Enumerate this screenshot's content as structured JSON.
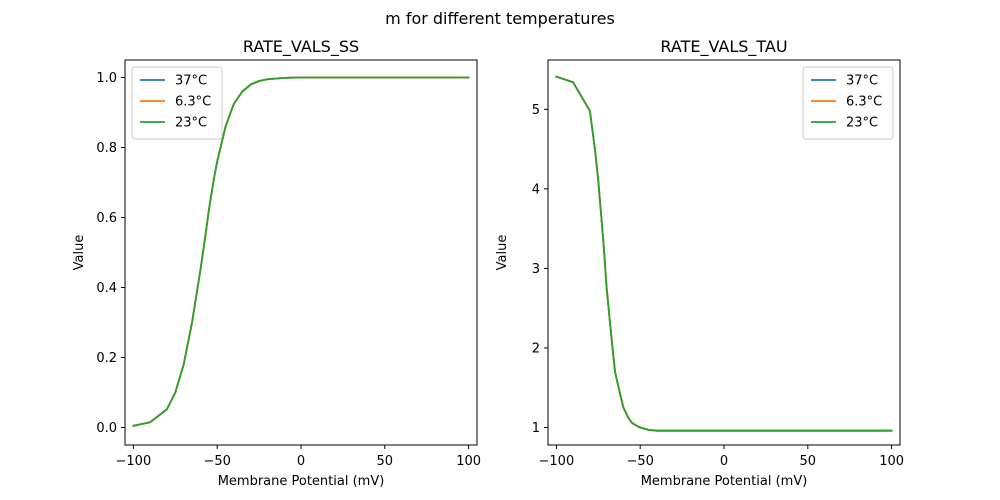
{
  "figure_title": "m for different temperatures",
  "chart_data": [
    {
      "type": "line",
      "title": "RATE_VALS_SS",
      "xlabel": "Membrane Potential (mV)",
      "ylabel": "Value",
      "xlim": [
        -105,
        105
      ],
      "ylim": [
        -0.05,
        1.05
      ],
      "xticks": [
        -100,
        -50,
        0,
        50,
        100
      ],
      "xtick_labels": [
        "−100",
        "−50",
        "0",
        "50",
        "100"
      ],
      "yticks": [
        0.0,
        0.2,
        0.4,
        0.6,
        0.8,
        1.0
      ],
      "ytick_labels": [
        "0.0",
        "0.2",
        "0.4",
        "0.6",
        "0.8",
        "1.0"
      ],
      "grid": false,
      "legend_position": "top-left",
      "x": [
        -100,
        -90,
        -80,
        -75,
        -70,
        -65,
        -60,
        -57,
        -55,
        -52,
        -50,
        -47,
        -45,
        -42,
        -40,
        -35,
        -30,
        -25,
        -20,
        -10,
        0,
        20,
        50,
        100
      ],
      "series": [
        {
          "name": "37°C",
          "color": "#1f77b4",
          "values": [
            0.005,
            0.015,
            0.052,
            0.1,
            0.18,
            0.3,
            0.45,
            0.55,
            0.62,
            0.71,
            0.76,
            0.82,
            0.86,
            0.9,
            0.925,
            0.96,
            0.98,
            0.99,
            0.995,
            0.999,
            1.0,
            1.0,
            1.0,
            1.0
          ]
        },
        {
          "name": "6.3°C",
          "color": "#ff7f0e",
          "values": [
            0.005,
            0.015,
            0.052,
            0.1,
            0.18,
            0.3,
            0.45,
            0.55,
            0.62,
            0.71,
            0.76,
            0.82,
            0.86,
            0.9,
            0.925,
            0.96,
            0.98,
            0.99,
            0.995,
            0.999,
            1.0,
            1.0,
            1.0,
            1.0
          ]
        },
        {
          "name": "23°C",
          "color": "#2ca02c",
          "values": [
            0.005,
            0.015,
            0.052,
            0.1,
            0.18,
            0.3,
            0.45,
            0.55,
            0.62,
            0.71,
            0.76,
            0.82,
            0.86,
            0.9,
            0.925,
            0.96,
            0.98,
            0.99,
            0.995,
            0.999,
            1.0,
            1.0,
            1.0,
            1.0
          ]
        }
      ]
    },
    {
      "type": "line",
      "title": "RATE_VALS_TAU",
      "xlabel": "Membrane Potential (mV)",
      "ylabel": "Value",
      "xlim": [
        -105,
        105
      ],
      "ylim": [
        0.78,
        5.62
      ],
      "xticks": [
        -100,
        -50,
        0,
        50,
        100
      ],
      "xtick_labels": [
        "−100",
        "−50",
        "0",
        "50",
        "100"
      ],
      "yticks": [
        1,
        2,
        3,
        4,
        5
      ],
      "ytick_labels": [
        "1",
        "2",
        "3",
        "4",
        "5"
      ],
      "grid": false,
      "legend_position": "top-right",
      "x": [
        -100,
        -90,
        -80,
        -77,
        -75,
        -72,
        -70,
        -67,
        -65,
        -62,
        -60,
        -57,
        -55,
        -52,
        -50,
        -45,
        -40,
        -35,
        -30,
        0,
        50,
        100
      ],
      "series": [
        {
          "name": "37°C",
          "color": "#1f77b4",
          "values": [
            5.41,
            5.34,
            4.98,
            4.5,
            4.1,
            3.35,
            2.75,
            2.1,
            1.7,
            1.42,
            1.25,
            1.12,
            1.06,
            1.02,
            1.0,
            0.97,
            0.96,
            0.96,
            0.96,
            0.96,
            0.96,
            0.96
          ]
        },
        {
          "name": "6.3°C",
          "color": "#ff7f0e",
          "values": [
            5.41,
            5.34,
            4.98,
            4.5,
            4.1,
            3.35,
            2.75,
            2.1,
            1.7,
            1.42,
            1.25,
            1.12,
            1.06,
            1.02,
            1.0,
            0.97,
            0.96,
            0.96,
            0.96,
            0.96,
            0.96,
            0.96
          ]
        },
        {
          "name": "23°C",
          "color": "#2ca02c",
          "values": [
            5.41,
            5.34,
            4.98,
            4.5,
            4.1,
            3.35,
            2.75,
            2.1,
            1.7,
            1.42,
            1.25,
            1.12,
            1.06,
            1.02,
            1.0,
            0.97,
            0.96,
            0.96,
            0.96,
            0.96,
            0.96,
            0.96
          ]
        }
      ]
    }
  ]
}
